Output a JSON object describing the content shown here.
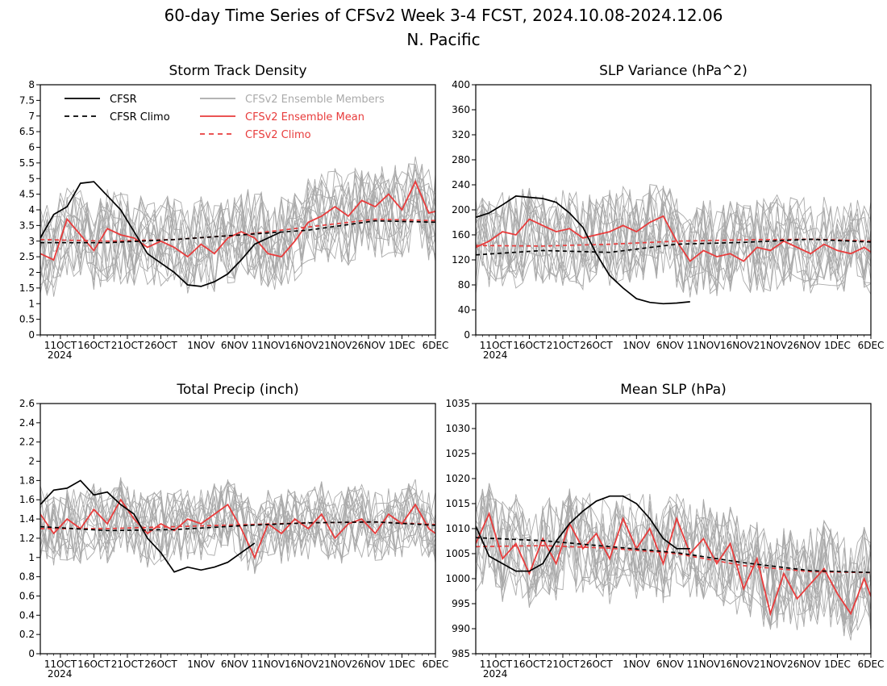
{
  "figure": {
    "title": "60-day Time Series of CFSv2 Week 3-4 FCST, 2024.10.08-2024.12.06",
    "subtitle": "N. Pacific"
  },
  "legend": [
    {
      "label": "CFSR",
      "color": "#000000",
      "dash": false
    },
    {
      "label": "CFSR Climo",
      "color": "#000000",
      "dash": true
    },
    {
      "label": "CFSv2 Ensemble Members",
      "color": "#aaaaaa",
      "dash": false
    },
    {
      "label": "CFSv2 Ensemble Mean",
      "color": "#e83c3c",
      "dash": false
    },
    {
      "label": "CFSv2 Climo",
      "color": "#e83c3c",
      "dash": true
    }
  ],
  "x_ticks": [
    "11OCT",
    "16OCT",
    "21OCT",
    "26OCT",
    "1NOV",
    "6NOV",
    "11NOV",
    "16NOV",
    "21NOV",
    "26NOV",
    "1DEC",
    "6DEC"
  ],
  "x_year_label": "2024",
  "chart_data": [
    {
      "type": "line",
      "title": "Storm Track Density",
      "ylim": [
        0,
        8
      ],
      "yticks": [
        "0",
        "0.5",
        "1",
        "1.5",
        "2",
        "2.5",
        "3",
        "3.5",
        "4",
        "4.5",
        "5",
        "5.5",
        "6",
        "6.5",
        "7",
        "7.5",
        "8"
      ],
      "x_days": [
        0,
        60
      ],
      "series": [
        {
          "name": "CFSR",
          "x": [
            0,
            2,
            4,
            6,
            8,
            10,
            12,
            14,
            16,
            18,
            20,
            22,
            24,
            26,
            28,
            30,
            32,
            34,
            36
          ],
          "values": [
            3.1,
            3.85,
            4.1,
            4.85,
            4.9,
            4.45,
            4.0,
            3.3,
            2.6,
            2.3,
            2.0,
            1.6,
            1.55,
            1.7,
            1.95,
            2.4,
            2.9,
            3.1,
            3.3
          ]
        },
        {
          "name": "CFSR Climo",
          "x": [
            0,
            10,
            20,
            30,
            40,
            50,
            60
          ],
          "values": [
            2.95,
            2.95,
            3.05,
            3.2,
            3.35,
            3.65,
            3.6
          ]
        },
        {
          "name": "CFSv2 Ensemble Mean",
          "x": [
            0,
            2,
            4,
            6,
            8,
            10,
            12,
            14,
            16,
            18,
            20,
            22,
            24,
            26,
            28,
            30,
            32,
            34,
            36,
            38,
            40,
            42,
            44,
            46,
            48,
            50,
            52,
            54,
            56,
            58,
            60
          ],
          "values": [
            2.6,
            2.4,
            3.7,
            3.2,
            2.7,
            3.4,
            3.2,
            3.1,
            2.8,
            3.0,
            2.8,
            2.5,
            2.9,
            2.6,
            3.1,
            3.3,
            3.1,
            2.6,
            2.5,
            3.0,
            3.6,
            3.8,
            4.1,
            3.8,
            4.3,
            4.1,
            4.5,
            4.0,
            4.9,
            3.9,
            4.0
          ]
        },
        {
          "name": "CFSv2 Climo",
          "x": [
            0,
            10,
            20,
            30,
            40,
            50,
            60
          ],
          "values": [
            3.05,
            3.0,
            3.05,
            3.2,
            3.45,
            3.7,
            3.65
          ]
        }
      ],
      "member_range": [
        0.2,
        5.7
      ]
    },
    {
      "type": "line",
      "title": "SLP Variance (hPa^2)",
      "ylim": [
        0,
        400
      ],
      "yticks": [
        "0",
        "40",
        "80",
        "120",
        "160",
        "200",
        "240",
        "280",
        "320",
        "360",
        "400"
      ],
      "x_days": [
        0,
        60
      ],
      "series": [
        {
          "name": "CFSR",
          "x": [
            0,
            2,
            4,
            6,
            8,
            10,
            12,
            14,
            16,
            18,
            20,
            22,
            24,
            26,
            28,
            30,
            32
          ],
          "values": [
            188,
            195,
            208,
            222,
            220,
            218,
            212,
            195,
            172,
            130,
            95,
            75,
            58,
            52,
            50,
            51,
            53
          ]
        },
        {
          "name": "CFSR Climo",
          "x": [
            0,
            10,
            20,
            30,
            40,
            50,
            60
          ],
          "values": [
            128,
            135,
            132,
            145,
            148,
            153,
            148
          ]
        },
        {
          "name": "CFSv2 Ensemble Mean",
          "x": [
            0,
            2,
            4,
            6,
            8,
            10,
            12,
            14,
            16,
            18,
            20,
            22,
            24,
            26,
            28,
            30,
            32,
            34,
            36,
            38,
            40,
            42,
            44,
            46,
            48,
            50,
            52,
            54,
            56,
            58,
            60
          ],
          "values": [
            140,
            150,
            165,
            160,
            185,
            175,
            165,
            170,
            155,
            160,
            165,
            175,
            165,
            180,
            190,
            150,
            118,
            135,
            125,
            130,
            118,
            140,
            135,
            150,
            140,
            130,
            145,
            135,
            130,
            140,
            125
          ]
        },
        {
          "name": "CFSv2 Climo",
          "x": [
            0,
            10,
            20,
            30,
            40,
            50,
            60
          ],
          "values": [
            143,
            142,
            145,
            150,
            152,
            153,
            150
          ]
        }
      ],
      "member_range": [
        60,
        340
      ]
    },
    {
      "type": "line",
      "title": "Total Precip (inch)",
      "ylim": [
        0,
        2.6
      ],
      "yticks": [
        "0",
        "0.2",
        "0.4",
        "0.6",
        "0.8",
        "1",
        "1.2",
        "1.4",
        "1.6",
        "1.8",
        "2",
        "2.2",
        "2.4",
        "2.6"
      ],
      "x_days": [
        0,
        60
      ],
      "series": [
        {
          "name": "CFSR",
          "x": [
            0,
            2,
            4,
            6,
            8,
            10,
            12,
            14,
            16,
            18,
            20,
            22,
            24,
            26,
            28,
            30,
            32
          ],
          "values": [
            1.55,
            1.7,
            1.72,
            1.8,
            1.65,
            1.68,
            1.55,
            1.45,
            1.2,
            1.05,
            0.85,
            0.9,
            0.87,
            0.9,
            0.95,
            1.05,
            1.15
          ]
        },
        {
          "name": "CFSR Climo",
          "x": [
            0,
            10,
            20,
            30,
            40,
            50,
            60
          ],
          "values": [
            1.32,
            1.28,
            1.29,
            1.33,
            1.36,
            1.37,
            1.33
          ]
        },
        {
          "name": "CFSv2 Ensemble Mean",
          "x": [
            0,
            2,
            4,
            6,
            8,
            10,
            12,
            14,
            16,
            18,
            20,
            22,
            24,
            26,
            28,
            30,
            32,
            34,
            36,
            38,
            40,
            42,
            44,
            46,
            48,
            50,
            52,
            54,
            56,
            58,
            60
          ],
          "values": [
            1.45,
            1.25,
            1.4,
            1.3,
            1.5,
            1.35,
            1.6,
            1.4,
            1.25,
            1.35,
            1.28,
            1.4,
            1.35,
            1.45,
            1.55,
            1.3,
            1.0,
            1.35,
            1.25,
            1.4,
            1.3,
            1.45,
            1.2,
            1.35,
            1.4,
            1.25,
            1.45,
            1.35,
            1.55,
            1.3,
            1.2
          ]
        },
        {
          "name": "CFSv2 Climo",
          "x": [
            0,
            10,
            20,
            30,
            40,
            50,
            60
          ],
          "values": [
            1.3,
            1.3,
            1.32,
            1.34,
            1.36,
            1.37,
            1.34
          ]
        }
      ],
      "member_range": [
        0.5,
        1.9
      ]
    },
    {
      "type": "line",
      "title": "Mean SLP (hPa)",
      "ylim": [
        985,
        1035
      ],
      "yticks": [
        "985",
        "990",
        "995",
        "1000",
        "1005",
        "1010",
        "1015",
        "1020",
        "1025",
        "1030",
        "1035"
      ],
      "x_days": [
        0,
        60
      ],
      "series": [
        {
          "name": "CFSR",
          "x": [
            0,
            2,
            4,
            6,
            8,
            10,
            12,
            14,
            16,
            18,
            20,
            22,
            24,
            26,
            28,
            30,
            32
          ],
          "values": [
            1010.5,
            1004.5,
            1003,
            1001.5,
            1001.5,
            1003,
            1007.5,
            1011,
            1013.5,
            1015.5,
            1016.5,
            1016.5,
            1015,
            1012,
            1008,
            1006,
            1006
          ]
        },
        {
          "name": "CFSR Climo",
          "x": [
            0,
            10,
            20,
            30,
            40,
            50,
            60
          ],
          "values": [
            1008.2,
            1007.6,
            1006.4,
            1005.2,
            1003.2,
            1001.6,
            1001.2
          ]
        },
        {
          "name": "CFSv2 Ensemble Mean",
          "x": [
            0,
            2,
            4,
            6,
            8,
            10,
            12,
            14,
            16,
            18,
            20,
            22,
            24,
            26,
            28,
            30,
            32,
            34,
            36,
            38,
            40,
            42,
            44,
            46,
            48,
            50,
            52,
            54,
            56,
            58,
            60
          ],
          "values": [
            1007,
            1013,
            1004,
            1007,
            1001,
            1008,
            1003,
            1011,
            1006,
            1009,
            1004,
            1012,
            1006,
            1010,
            1003,
            1012,
            1005,
            1008,
            1003,
            1007,
            998,
            1004,
            993,
            1001,
            996,
            999,
            1002,
            997,
            993,
            1000,
            993
          ]
        },
        {
          "name": "CFSv2 Climo",
          "x": [
            0,
            10,
            20,
            30,
            40,
            50,
            60
          ],
          "values": [
            1006.4,
            1006.6,
            1006.1,
            1005,
            1002.6,
            1001.4,
            1001.2
          ]
        }
      ],
      "member_range": [
        986,
        1023
      ]
    }
  ]
}
